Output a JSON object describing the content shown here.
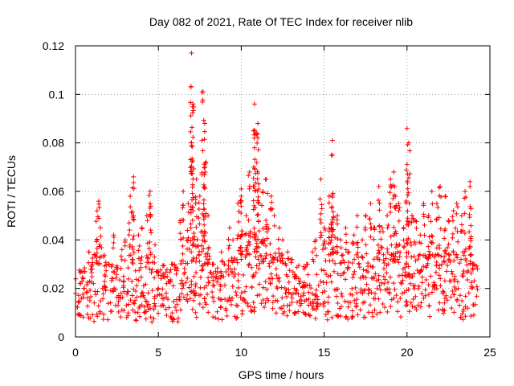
{
  "chart_data": {
    "type": "scatter",
    "title": "Day 082 of 2021, Rate Of TEC Index for receiver nlib",
    "xlabel": "GPS time / hours",
    "ylabel": "ROTI / TECUs",
    "xlim": [
      0,
      25
    ],
    "ylim": [
      0,
      0.12
    ],
    "x_ticks": [
      "0",
      "5",
      "10",
      "15",
      "20",
      "25"
    ],
    "x_tick_values": [
      0,
      5,
      10,
      15,
      20,
      25
    ],
    "y_ticks": [
      "0",
      "0.02",
      "0.04",
      "0.06",
      "0.08",
      "0.1",
      "0.12"
    ],
    "y_tick_values": [
      0,
      0.02,
      0.04,
      0.06,
      0.08,
      0.1,
      0.12
    ],
    "grid": true,
    "legend": "none",
    "marker": "plus",
    "color": "#ff0000",
    "series": [
      {
        "x": [
          0.0,
          0.3,
          0.5,
          0.8,
          1.0,
          1.3,
          1.5,
          1.8,
          2.0,
          2.3,
          2.5,
          2.8,
          3.0,
          3.3,
          3.5,
          3.8,
          4.0,
          4.3,
          4.5,
          4.8,
          5.0,
          5.3,
          5.5,
          5.8,
          6.0,
          6.3,
          6.5,
          6.8,
          7.0,
          7.3,
          7.5,
          7.8,
          8.0,
          8.3,
          8.5,
          8.8,
          9.0,
          9.3,
          9.5,
          9.8,
          10.0,
          10.3,
          10.5,
          10.8,
          11.0,
          11.3,
          11.5,
          11.8,
          12.0,
          12.3,
          12.5,
          12.8,
          13.0,
          13.3,
          13.5,
          13.8,
          14.0,
          14.3,
          14.5,
          14.8,
          15.0,
          15.3,
          15.5,
          15.8,
          16.0,
          16.3,
          16.5,
          16.8,
          17.0,
          17.3,
          17.5,
          17.8,
          18.0,
          18.3,
          18.5,
          18.8,
          19.0,
          19.3,
          19.5,
          19.8,
          20.0,
          20.3,
          20.5,
          20.8,
          21.0,
          21.3,
          21.5,
          21.8,
          22.0,
          22.3,
          22.5,
          22.8,
          23.0,
          23.3,
          23.5,
          23.8,
          24.0,
          7.0,
          7.1,
          7.7,
          7.8,
          10.8,
          11.0,
          15.5,
          20.0,
          20.1,
          3.5,
          19.2,
          23.8,
          1.4,
          4.5,
          10.0
        ],
        "y": [
          0.018,
          0.022,
          0.02,
          0.035,
          0.028,
          0.052,
          0.045,
          0.025,
          0.03,
          0.042,
          0.028,
          0.036,
          0.04,
          0.058,
          0.05,
          0.042,
          0.045,
          0.05,
          0.055,
          0.038,
          0.02,
          0.025,
          0.022,
          0.03,
          0.028,
          0.048,
          0.06,
          0.055,
          0.08,
          0.065,
          0.058,
          0.07,
          0.05,
          0.03,
          0.025,
          0.035,
          0.03,
          0.045,
          0.04,
          0.055,
          0.058,
          0.05,
          0.068,
          0.078,
          0.088,
          0.06,
          0.065,
          0.058,
          0.05,
          0.045,
          0.04,
          0.035,
          0.032,
          0.025,
          0.022,
          0.028,
          0.03,
          0.035,
          0.04,
          0.065,
          0.045,
          0.058,
          0.075,
          0.05,
          0.04,
          0.045,
          0.035,
          0.042,
          0.05,
          0.04,
          0.05,
          0.055,
          0.045,
          0.062,
          0.045,
          0.05,
          0.065,
          0.058,
          0.055,
          0.045,
          0.04,
          0.05,
          0.048,
          0.042,
          0.055,
          0.05,
          0.06,
          0.055,
          0.062,
          0.058,
          0.048,
          0.052,
          0.055,
          0.05,
          0.06,
          0.062,
          0.03,
          0.117,
          0.096,
          0.101,
          0.088,
          0.096,
          0.082,
          0.081,
          0.086,
          0.08,
          0.066,
          0.068,
          0.064,
          0.056,
          0.06,
          0.061
        ]
      }
    ],
    "band": {
      "description_values": "dense scatter band",
      "lower": [
        0.008,
        0.008,
        0.007,
        0.006,
        0.005,
        0.006,
        0.007,
        0.006,
        0.006,
        0.007,
        0.008,
        0.008,
        0.007,
        0.006,
        0.006,
        0.008,
        0.008,
        0.006,
        0.006,
        0.007,
        0.008,
        0.008,
        0.007,
        0.006,
        0.006,
        0.007,
        0.007,
        0.008,
        0.008,
        0.008,
        0.009,
        0.009,
        0.008,
        0.006,
        0.006,
        0.006,
        0.005,
        0.004,
        0.005,
        0.006,
        0.007,
        0.008,
        0.009,
        0.01,
        0.01,
        0.01,
        0.01,
        0.01,
        0.009,
        0.009,
        0.008,
        0.008,
        0.008,
        0.008,
        0.008,
        0.008,
        0.008,
        0.007,
        0.006,
        0.005,
        0.006,
        0.008,
        0.008,
        0.007,
        0.006,
        0.005,
        0.006,
        0.007,
        0.007,
        0.008,
        0.008,
        0.008,
        0.009,
        0.009,
        0.009,
        0.009,
        0.009,
        0.008,
        0.008,
        0.009,
        0.009,
        0.009,
        0.009,
        0.009,
        0.008,
        0.008,
        0.008,
        0.008,
        0.008,
        0.008,
        0.007,
        0.008,
        0.007,
        0.007,
        0.008,
        0.008,
        0.008
      ],
      "upper": [
        0.025,
        0.028,
        0.03,
        0.03,
        0.035,
        0.04,
        0.042,
        0.032,
        0.03,
        0.032,
        0.03,
        0.028,
        0.03,
        0.038,
        0.04,
        0.032,
        0.032,
        0.035,
        0.038,
        0.03,
        0.028,
        0.03,
        0.028,
        0.03,
        0.03,
        0.035,
        0.04,
        0.04,
        0.045,
        0.038,
        0.038,
        0.042,
        0.035,
        0.03,
        0.03,
        0.03,
        0.03,
        0.032,
        0.035,
        0.04,
        0.042,
        0.04,
        0.045,
        0.048,
        0.048,
        0.045,
        0.045,
        0.042,
        0.038,
        0.035,
        0.032,
        0.03,
        0.028,
        0.025,
        0.025,
        0.025,
        0.026,
        0.028,
        0.03,
        0.038,
        0.035,
        0.04,
        0.042,
        0.038,
        0.035,
        0.035,
        0.032,
        0.035,
        0.035,
        0.03,
        0.032,
        0.035,
        0.035,
        0.038,
        0.035,
        0.035,
        0.038,
        0.038,
        0.035,
        0.033,
        0.032,
        0.035,
        0.035,
        0.032,
        0.035,
        0.035,
        0.038,
        0.035,
        0.038,
        0.038,
        0.035,
        0.035,
        0.035,
        0.035,
        0.035,
        0.038,
        0.03
      ]
    }
  }
}
